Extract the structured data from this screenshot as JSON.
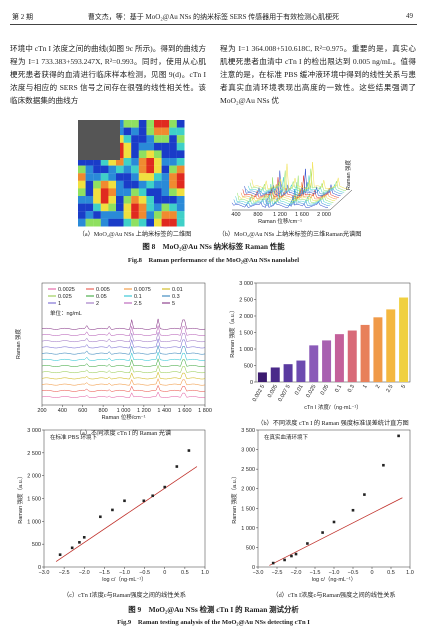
{
  "header": {
    "issue": "第 2 期",
    "running_title": "曹文杰，等：基于 MoO₂@Au NSs 的纳米标签 SERS 传感器用于有效检测心肌梗死",
    "page": "49"
  },
  "body": {
    "left": "环境中 cTn I 浓度之间的曲线(如图 9c 所示)。得到的曲线方程为 I=1 733.383+593.247X, R²=0.993。同时，使用从心肌梗死患者获得的血清进行临床样本检测，见图 9(d)。cTn I 浓度与相应的 SERS 信号之间存在很强的线性相关性。该临床数据集的曲线方",
    "right": "程为 I=1 364.008+510.618C, R²=0.975。重要的是，真实心肌梗死患者血清中 cTn I 的检出限达到 0.005 ng/mL。值得注意的是，在标准 PBS 缓冲液环境中得到的线性关系与患者真实血清环境表现出高度的一致性。这些结果强调了 MoO₂@Au NSs 优"
  },
  "figure8": {
    "a_caption": "（a）MoO₂@Au NSs 上纳米标签的二维图",
    "b_caption": "（b）MoO₂@Au NSs 上纳米标签的三维Raman光谱图",
    "b_xticks": [
      "400",
      "800",
      "1 200",
      "1 600",
      "2 000"
    ],
    "b_xlabel": "Raman 位移/cm⁻¹",
    "b_ylabel": "Raman 强度",
    "title": "图 8　MoO₂@Au NSs 纳米标签 Raman 性能",
    "title_en": "Fig.8　Raman performance of the MoO₂@Au NSs nanolabel"
  },
  "figure9": {
    "title": "图 9　MoO₂@Au NSs 检测 cTn I 的 Raman 测试分析",
    "title_en": "Fig.9　Raman testing analysis of the MoO₂@Au NSs detecting cTn I",
    "panels": [
      {
        "type": "spectra",
        "caption": "（a）不同浓度 cTn I 的 Raman 光谱",
        "legend": [
          "0.0025",
          "0.005",
          "0.0075",
          "0.01",
          "0.025",
          "0.05",
          "0.1",
          "0.3",
          "1",
          "2",
          "2.5",
          "5"
        ],
        "colors": [
          "#e0529c",
          "#e8443a",
          "#f08c2a",
          "#c9b000",
          "#8cc63f",
          "#2ca02c",
          "#17becf",
          "#1f77b4",
          "#6a5acd",
          "#9467bd",
          "#b04fb0",
          "#7a1f7a"
        ],
        "unit_note": "单位：ng/mL",
        "xlabel": "Raman 位移/cm⁻¹",
        "ylabel": "Raman 强度",
        "xlim": [
          200,
          1800
        ],
        "xticks": [
          200,
          400,
          600,
          800,
          {
            "value": 1000,
            "label": "1 000"
          },
          {
            "value": 1200,
            "label": "1 200"
          },
          {
            "value": 1400,
            "label": "1 400"
          },
          {
            "value": 1600,
            "label": "1 600"
          },
          {
            "value": 1800,
            "label": "1 800"
          }
        ]
      },
      {
        "type": "bar",
        "caption": "（b）不同浓度 cTn I 的 Raman 强度标准误差统计直方图",
        "categories": [
          "0.002 5",
          "0.005",
          "0.007 5",
          "0.01",
          "0.025",
          "0.05",
          "0.1",
          "0.3",
          "1",
          "2",
          "2.5",
          "5"
        ],
        "values": [
          290,
          440,
          540,
          650,
          1110,
          1260,
          1450,
          1560,
          1730,
          1960,
          2200,
          2560
        ],
        "colors": [
          "#3b1a6e",
          "#4a2a8a",
          "#5a3aa0",
          "#6d4bb0",
          "#8a5ab8",
          "#a860b0",
          "#c4609a",
          "#d86a78",
          "#e8805a",
          "#f09a48",
          "#f4b840",
          "#f0d040"
        ],
        "xlabel": "cTn I 浓度/（ng·mL⁻¹）",
        "ylabel": "Raman 强度（a.u.）",
        "ylim": [
          0,
          3000
        ],
        "yticks": [
          0,
          500,
          {
            "value": 1000,
            "label": "1 000"
          },
          {
            "value": 1500,
            "label": "1 500"
          },
          {
            "value": 2000,
            "label": "2 000"
          },
          {
            "value": 2500,
            "label": "2 500"
          },
          {
            "value": 3000,
            "label": "3 000"
          }
        ]
      },
      {
        "type": "scatter",
        "caption": "（c）cTn I浓度c与Raman强度之间的线性关系",
        "annotation": "在标准 PBS 环境下",
        "x": [
          -2.6,
          -2.3,
          -2.12,
          -2,
          -1.6,
          -1.3,
          -1,
          -0.52,
          -0.3,
          0,
          0.3,
          0.6
        ],
        "values": [
          270,
          420,
          540,
          650,
          1100,
          1250,
          1450,
          1450,
          1560,
          1750,
          2200,
          2550
        ],
        "fit": {
          "x": [
            -2.7,
            0.8
          ],
          "values": [
            120,
            2200
          ]
        },
        "xlabel": "log c/（ng·mL⁻¹）",
        "ylabel": "Raman 强度（a.u.）",
        "xlim": [
          -3,
          1
        ],
        "xticks": [
          {
            "value": -3,
            "label": "−3.0"
          },
          {
            "value": -2.5,
            "label": "−2.5"
          },
          {
            "value": -2,
            "label": "−2.0"
          },
          {
            "value": -1.5,
            "label": "−1.5"
          },
          {
            "value": -1,
            "label": "−1.0"
          },
          {
            "value": -0.5,
            "label": "−0.5"
          },
          {
            "value": 0,
            "label": "0"
          },
          {
            "value": 0.5,
            "label": "0.5"
          },
          {
            "value": 1,
            "label": "1.0"
          }
        ],
        "ylim": [
          0,
          3000
        ],
        "yticks": [
          0,
          500,
          {
            "value": 1000,
            "label": "1 000"
          },
          {
            "value": 1500,
            "label": "1 500"
          },
          {
            "value": 2000,
            "label": "2 000"
          },
          {
            "value": 2500,
            "label": "2 500"
          },
          {
            "value": 3000,
            "label": "3 000"
          }
        ]
      },
      {
        "type": "scatter",
        "caption": "（d）cTn I浓度c与Raman强度之间的线性关系",
        "annotation": "在真实血清环境下",
        "x": [
          -2.6,
          -2.3,
          -2.12,
          -2,
          -1.7,
          -1.3,
          -1,
          -0.5,
          -0.2,
          0.3,
          0.7
        ],
        "values": [
          100,
          180,
          280,
          330,
          600,
          880,
          1150,
          1450,
          1850,
          2600,
          3350
        ],
        "fit": {
          "x": [
            -2.7,
            0.8
          ],
          "values": [
            40,
            1770
          ]
        },
        "xlabel": "log c/（ng·mL⁻¹）",
        "ylabel": "Raman 强度（a.u.）",
        "xlim": [
          -3,
          1
        ],
        "xticks": [
          {
            "value": -3,
            "label": "−3.0"
          },
          {
            "value": -2.5,
            "label": "−2.5"
          },
          {
            "value": -2,
            "label": "−2.0"
          },
          {
            "value": -1.5,
            "label": "−1.5"
          },
          {
            "value": -1,
            "label": "−1.0"
          },
          {
            "value": -0.5,
            "label": "−0.5"
          },
          {
            "value": 0,
            "label": "0"
          },
          {
            "value": 0.5,
            "label": "0.5"
          },
          {
            "value": 1,
            "label": "1.0"
          }
        ],
        "ylim": [
          0,
          3500
        ],
        "yticks": [
          0,
          500,
          {
            "value": 1000,
            "label": "1 000"
          },
          {
            "value": 1500,
            "label": "1 500"
          },
          {
            "value": 2000,
            "label": "2 000"
          },
          {
            "value": 2500,
            "label": "2 500"
          },
          {
            "value": 3000,
            "label": "3 000"
          },
          {
            "value": 3500,
            "label": "3 500"
          }
        ]
      }
    ]
  }
}
